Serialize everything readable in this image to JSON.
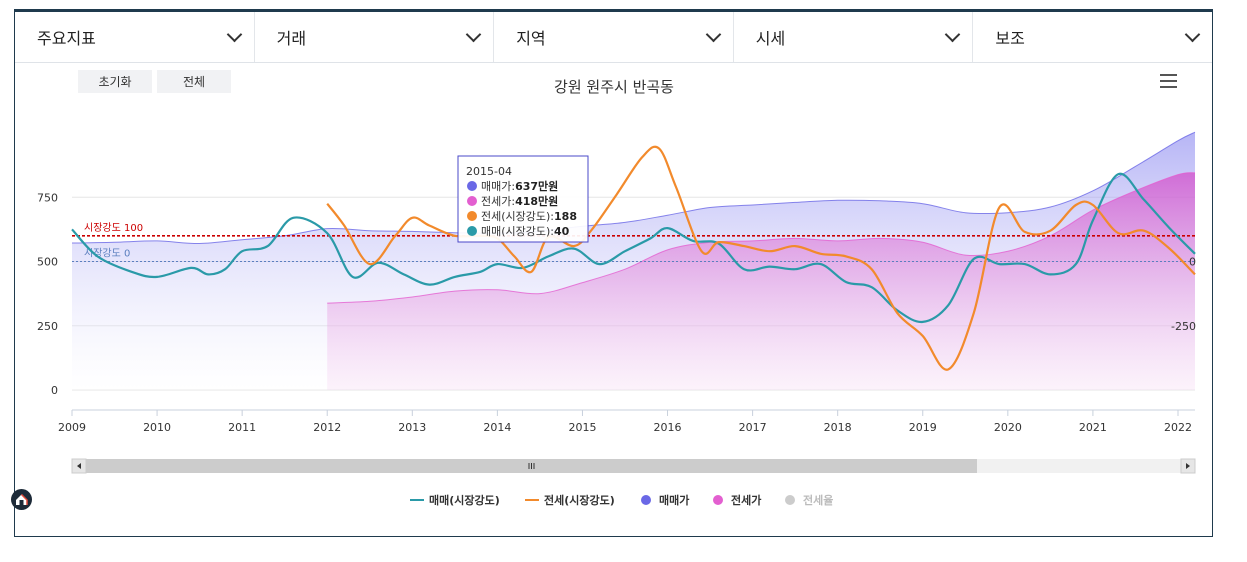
{
  "tabs": [
    {
      "label": "주요지표"
    },
    {
      "label": "거래"
    },
    {
      "label": "지역"
    },
    {
      "label": "시세"
    },
    {
      "label": "보조"
    }
  ],
  "buttons": {
    "reset": "초기화",
    "all": "전체"
  },
  "icons": {
    "menu": "hamburger-menu-icon",
    "dropdown": "chevron-down-icon",
    "logo": "house-logo-icon"
  },
  "chart_data": {
    "type": "line",
    "title": "강원 원주시 반곡동",
    "x_ticks": [
      "2009",
      "2010",
      "2011",
      "2012",
      "2013",
      "2014",
      "2015",
      "2016",
      "2017",
      "2018",
      "2019",
      "2020",
      "2021",
      "2022"
    ],
    "xlim": [
      2009.0,
      2022.2
    ],
    "y_left_ticks": [
      0,
      250,
      500,
      750
    ],
    "ylim_left": [
      0,
      1000
    ],
    "y_right_ticks": [
      -250,
      0
    ],
    "ylim_right": [
      -500,
      500
    ],
    "reference_lines": [
      {
        "label": "시장강도 100",
        "value": 100,
        "color": "#cc0000"
      },
      {
        "label": "시장강도 0",
        "value": 0,
        "color": "#5b7fbf"
      }
    ],
    "legend": {
      "placement": "bottom-center",
      "items": [
        {
          "label": "매매(시장강도)",
          "color": "#2a9aa8",
          "type": "line",
          "enabled": true
        },
        {
          "label": "전세(시장강도)",
          "color": "#f28a2c",
          "type": "line",
          "enabled": true
        },
        {
          "label": "매매가",
          "color": "#6a68e6",
          "type": "dot",
          "enabled": true
        },
        {
          "label": "전세가",
          "color": "#e35fd0",
          "type": "dot",
          "enabled": true
        },
        {
          "label": "전세율",
          "color": "#cccccc",
          "type": "dot",
          "enabled": false
        }
      ]
    },
    "series": [
      {
        "name": "매매가",
        "axis": "left",
        "color": "#6a68e6",
        "x": [
          2009.0,
          2009.5,
          2010.0,
          2010.5,
          2011.0,
          2011.5,
          2012.0,
          2012.5,
          2013.0,
          2013.5,
          2014.0,
          2014.5,
          2015.0,
          2015.5,
          2016.0,
          2016.5,
          2017.0,
          2017.5,
          2018.0,
          2018.5,
          2019.0,
          2019.5,
          2020.0,
          2020.5,
          2021.0,
          2021.5,
          2022.0,
          2022.2
        ],
        "values": [
          572,
          575,
          580,
          570,
          585,
          600,
          628,
          620,
          617,
          612,
          610,
          618,
          637,
          652,
          680,
          710,
          720,
          730,
          738,
          736,
          725,
          690,
          690,
          712,
          775,
          870,
          970,
          1003
        ]
      },
      {
        "name": "전세가",
        "axis": "left",
        "color": "#e35fd0",
        "x": [
          2012.0,
          2012.5,
          2013.0,
          2013.5,
          2014.0,
          2014.5,
          2015.0,
          2015.5,
          2016.0,
          2016.5,
          2017.0,
          2017.5,
          2018.0,
          2018.5,
          2019.0,
          2019.5,
          2020.0,
          2020.5,
          2021.0,
          2021.5,
          2022.0,
          2022.2
        ],
        "values": [
          338,
          345,
          362,
          385,
          390,
          375,
          418,
          470,
          545,
          575,
          580,
          590,
          580,
          590,
          575,
          525,
          540,
          600,
          700,
          775,
          838,
          845
        ]
      },
      {
        "name": "매매(시장강도)",
        "axis": "right",
        "color": "#2a9aa8",
        "x": [
          2009.0,
          2009.3,
          2009.7,
          2010.0,
          2010.4,
          2010.6,
          2010.8,
          2011.0,
          2011.3,
          2011.6,
          2012.0,
          2012.3,
          2012.6,
          2012.9,
          2013.2,
          2013.5,
          2013.8,
          2014.0,
          2014.3,
          2014.6,
          2014.9,
          2015.2,
          2015.5,
          2015.8,
          2016.0,
          2016.3,
          2016.6,
          2016.9,
          2017.2,
          2017.5,
          2017.8,
          2018.1,
          2018.4,
          2018.7,
          2019.0,
          2019.3,
          2019.6,
          2019.9,
          2020.2,
          2020.5,
          2020.8,
          2021.0,
          2021.3,
          2021.6,
          2021.9,
          2022.2
        ],
        "values": [
          125,
          20,
          -40,
          -60,
          -25,
          -50,
          -30,
          40,
          60,
          170,
          110,
          -60,
          -5,
          -50,
          -90,
          -60,
          -40,
          -10,
          -25,
          20,
          50,
          -10,
          40,
          90,
          130,
          80,
          70,
          -30,
          -20,
          -30,
          -10,
          -80,
          -100,
          -190,
          -235,
          -170,
          10,
          -10,
          -10,
          -50,
          -10,
          160,
          340,
          240,
          130,
          30
        ]
      },
      {
        "name": "전세(시장강도)",
        "axis": "right",
        "color": "#f28a2c",
        "x": [
          2012.0,
          2012.2,
          2012.5,
          2012.8,
          2013.0,
          2013.2,
          2013.5,
          2013.8,
          2014.0,
          2014.2,
          2014.4,
          2014.6,
          2014.9,
          2015.1,
          2015.4,
          2015.7,
          2015.9,
          2016.1,
          2016.4,
          2016.6,
          2016.9,
          2017.2,
          2017.5,
          2017.8,
          2018.1,
          2018.4,
          2018.7,
          2019.0,
          2019.3,
          2019.6,
          2019.9,
          2020.2,
          2020.5,
          2020.8,
          2021.0,
          2021.3,
          2021.6,
          2021.9,
          2022.2
        ],
        "values": [
          225,
          140,
          -10,
          100,
          170,
          140,
          100,
          100,
          90,
          20,
          -40,
          95,
          60,
          120,
          260,
          405,
          440,
          290,
          40,
          75,
          60,
          40,
          60,
          30,
          20,
          -30,
          -200,
          -290,
          -420,
          -200,
          210,
          115,
          120,
          220,
          220,
          110,
          120,
          50,
          -50
        ]
      }
    ],
    "tooltip": {
      "date": "2015-04",
      "rows": [
        {
          "label": "매매가: ",
          "value": "637만원",
          "color": "#6a68e6"
        },
        {
          "label": "전세가: ",
          "value": "418만원",
          "color": "#e35fd0"
        },
        {
          "label": "전세(시장강도): ",
          "value": "188",
          "color": "#f28a2c"
        },
        {
          "label": "매매(시장강도): ",
          "value": "40",
          "color": "#2a9aa8"
        }
      ]
    }
  }
}
